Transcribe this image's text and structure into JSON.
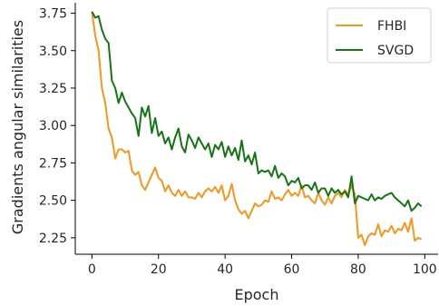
{
  "chart_data": {
    "type": "line",
    "title": "",
    "xlabel": "Epoch",
    "ylabel": "Gradients angular similarities",
    "xlim": [
      -5,
      104
    ],
    "ylim": [
      2.14,
      3.82
    ],
    "xticks": [
      0,
      20,
      40,
      60,
      80,
      100
    ],
    "yticks": [
      2.25,
      2.5,
      2.75,
      3.0,
      3.25,
      3.5,
      3.75
    ],
    "xtick_labels": [
      "0",
      "20",
      "40",
      "60",
      "80",
      "100"
    ],
    "ytick_labels": [
      "2.25",
      "2.50",
      "2.75",
      "3.00",
      "3.25",
      "3.50",
      "3.75"
    ],
    "grid": false,
    "legend_position": "top-right",
    "series": [
      {
        "name": "FHBI",
        "color": "#f5961e",
        "x": [
          0,
          1,
          2,
          3,
          4,
          5,
          6,
          7,
          8,
          9,
          10,
          11,
          12,
          13,
          14,
          15,
          16,
          17,
          18,
          19,
          20,
          21,
          22,
          23,
          24,
          25,
          26,
          27,
          28,
          29,
          30,
          31,
          32,
          33,
          34,
          35,
          36,
          37,
          38,
          39,
          40,
          41,
          42,
          43,
          44,
          45,
          46,
          47,
          48,
          49,
          50,
          51,
          52,
          53,
          54,
          55,
          56,
          57,
          58,
          59,
          60,
          61,
          62,
          63,
          64,
          65,
          66,
          67,
          68,
          69,
          70,
          71,
          72,
          73,
          74,
          75,
          76,
          77,
          78,
          79,
          80,
          81,
          82,
          83,
          84,
          85,
          86,
          87,
          88,
          89,
          90,
          91,
          92,
          93,
          94,
          95,
          96,
          97,
          98,
          99
        ],
        "values": [
          3.76,
          3.6,
          3.5,
          3.25,
          3.15,
          2.98,
          2.92,
          2.78,
          2.84,
          2.84,
          2.82,
          2.83,
          2.7,
          2.67,
          2.69,
          2.6,
          2.57,
          2.62,
          2.67,
          2.72,
          2.65,
          2.63,
          2.56,
          2.6,
          2.55,
          2.53,
          2.57,
          2.53,
          2.56,
          2.52,
          2.52,
          2.51,
          2.55,
          2.52,
          2.56,
          2.58,
          2.56,
          2.59,
          2.55,
          2.6,
          2.5,
          2.53,
          2.61,
          2.5,
          2.44,
          2.41,
          2.43,
          2.38,
          2.43,
          2.48,
          2.46,
          2.47,
          2.5,
          2.49,
          2.56,
          2.51,
          2.52,
          2.5,
          2.54,
          2.57,
          2.53,
          2.55,
          2.53,
          2.6,
          2.52,
          2.53,
          2.5,
          2.48,
          2.55,
          2.5,
          2.47,
          2.52,
          2.48,
          2.53,
          2.55,
          2.52,
          2.57,
          2.54,
          2.6,
          2.54,
          2.25,
          2.27,
          2.2,
          2.26,
          2.28,
          2.27,
          2.34,
          2.26,
          2.3,
          2.29,
          2.33,
          2.28,
          2.31,
          2.3,
          2.35,
          2.29,
          2.38,
          2.23,
          2.25,
          2.24
        ]
      },
      {
        "name": "SVGD",
        "color": "#157515",
        "x": [
          0,
          1,
          2,
          3,
          4,
          5,
          6,
          7,
          8,
          9,
          10,
          11,
          12,
          13,
          14,
          15,
          16,
          17,
          18,
          19,
          20,
          21,
          22,
          23,
          24,
          25,
          26,
          27,
          28,
          29,
          30,
          31,
          32,
          33,
          34,
          35,
          36,
          37,
          38,
          39,
          40,
          41,
          42,
          43,
          44,
          45,
          46,
          47,
          48,
          49,
          50,
          51,
          52,
          53,
          54,
          55,
          56,
          57,
          58,
          59,
          60,
          61,
          62,
          63,
          64,
          65,
          66,
          67,
          68,
          69,
          70,
          71,
          72,
          73,
          74,
          75,
          76,
          77,
          78,
          79,
          80,
          81,
          82,
          83,
          84,
          85,
          86,
          87,
          88,
          89,
          90,
          91,
          92,
          93,
          94,
          95,
          96,
          97,
          98,
          99
        ],
        "values": [
          3.76,
          3.72,
          3.73,
          3.64,
          3.58,
          3.55,
          3.3,
          3.25,
          3.15,
          3.22,
          3.16,
          3.12,
          3.08,
          3.05,
          2.93,
          3.12,
          3.06,
          3.13,
          2.95,
          3.05,
          2.93,
          2.96,
          2.88,
          2.92,
          2.84,
          2.92,
          2.98,
          2.86,
          2.82,
          2.94,
          2.9,
          2.85,
          2.92,
          2.88,
          2.84,
          2.88,
          2.79,
          2.87,
          2.84,
          2.89,
          2.79,
          2.86,
          2.8,
          2.85,
          2.77,
          2.9,
          2.76,
          2.8,
          2.74,
          2.82,
          2.68,
          2.7,
          2.69,
          2.7,
          2.66,
          2.73,
          2.65,
          2.68,
          2.66,
          2.6,
          2.63,
          2.62,
          2.65,
          2.58,
          2.6,
          2.6,
          2.57,
          2.62,
          2.55,
          2.58,
          2.58,
          2.53,
          2.58,
          2.55,
          2.57,
          2.54,
          2.56,
          2.52,
          2.66,
          2.48,
          2.53,
          2.52,
          2.51,
          2.5,
          2.54,
          2.5,
          2.52,
          2.51,
          2.53,
          2.54,
          2.55,
          2.52,
          2.5,
          2.48,
          2.46,
          2.5,
          2.43,
          2.45,
          2.48,
          2.46
        ]
      }
    ]
  }
}
